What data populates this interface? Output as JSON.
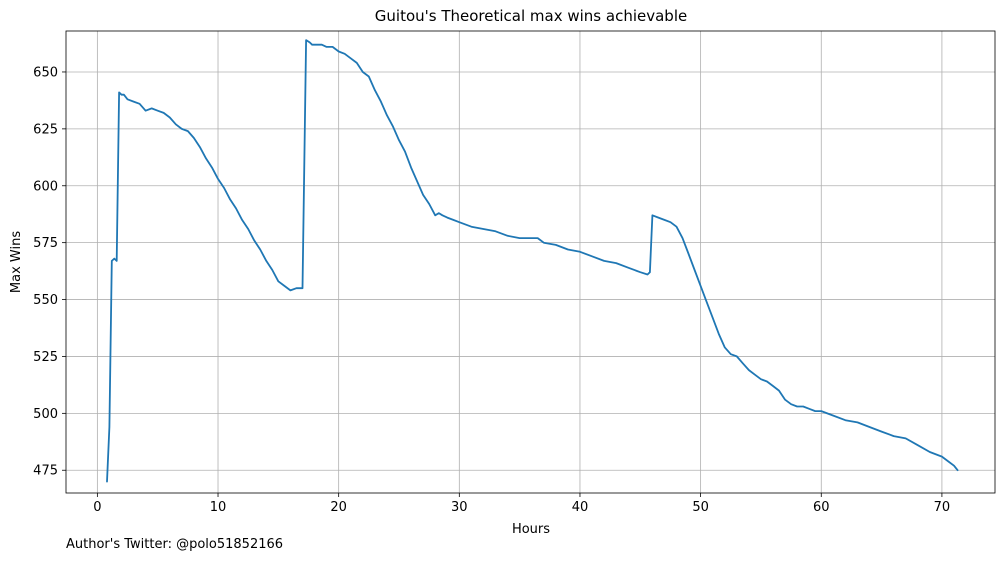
{
  "chart_data": {
    "type": "line",
    "title": "Guitou's Theoretical max wins achievable",
    "xlabel": "Hours",
    "ylabel": "Max Wins",
    "xlim": [
      -2.6,
      74.4
    ],
    "ylim": [
      465,
      668
    ],
    "xticks": [
      0,
      10,
      20,
      30,
      40,
      50,
      60,
      70
    ],
    "yticks": [
      475,
      500,
      525,
      550,
      575,
      600,
      625,
      650
    ],
    "grid": true,
    "series_color": "#1f77b4",
    "series": [
      {
        "x": [
          0.8,
          1.0,
          1.2,
          1.4,
          1.6,
          1.8,
          2.0,
          2.2,
          2.5,
          3.0,
          3.5,
          4.0,
          4.5,
          5.0,
          5.5,
          6.0,
          6.5,
          7.0,
          7.5,
          8.0,
          8.5,
          9.0,
          9.5,
          10.0,
          10.5,
          11.0,
          11.5,
          12.0,
          12.5,
          13.0,
          13.5,
          14.0,
          14.5,
          15.0,
          15.5,
          16.0,
          16.5,
          17.0,
          17.3,
          17.6,
          17.8,
          18.2,
          18.6,
          19.0,
          19.5,
          20.0,
          20.5,
          21.0,
          21.5,
          22.0,
          22.5,
          23.0,
          23.5,
          24.0,
          24.5,
          25.0,
          25.5,
          26.0,
          26.5,
          27.0,
          27.5,
          28.0,
          28.3,
          28.6,
          29.0,
          29.5,
          30.0,
          31.0,
          32.0,
          33.0,
          34.0,
          35.0,
          36.0,
          36.5,
          37.0,
          38.0,
          39.0,
          40.0,
          41.0,
          42.0,
          43.0,
          44.0,
          45.0,
          45.6,
          45.8,
          46.0,
          46.5,
          47.0,
          47.5,
          48.0,
          48.5,
          49.0,
          49.5,
          50.0,
          50.5,
          51.0,
          51.5,
          52.0,
          52.5,
          53.0,
          53.5,
          54.0,
          54.5,
          55.0,
          55.5,
          56.0,
          56.5,
          57.0,
          57.5,
          58.0,
          58.5,
          59.0,
          59.5,
          60.0,
          61.0,
          62.0,
          63.0,
          64.0,
          65.0,
          66.0,
          67.0,
          68.0,
          69.0,
          70.0,
          70.5,
          71.0,
          71.3
        ],
        "y": [
          470,
          494,
          567,
          568,
          567,
          641,
          640,
          640,
          638,
          637,
          636,
          633,
          634,
          633,
          632,
          630,
          627,
          625,
          624,
          621,
          617,
          612,
          608,
          603,
          599,
          594,
          590,
          585,
          581,
          576,
          572,
          567,
          563,
          558,
          556,
          554,
          555,
          555,
          664,
          663,
          662,
          662,
          662,
          661,
          661,
          659,
          658,
          656,
          654,
          650,
          648,
          642,
          637,
          631,
          626,
          620,
          615,
          608,
          602,
          596,
          592,
          587,
          588,
          587,
          586,
          585,
          584,
          582,
          581,
          580,
          578,
          577,
          577,
          577,
          575,
          574,
          572,
          571,
          569,
          567,
          566,
          564,
          562,
          561,
          562,
          587,
          586,
          585,
          584,
          582,
          577,
          570,
          563,
          556,
          549,
          542,
          535,
          529,
          526,
          525,
          522,
          519,
          517,
          515,
          514,
          512,
          510,
          506,
          504,
          503,
          503,
          502,
          501,
          501,
          499,
          497,
          496,
          494,
          492,
          490,
          489,
          486,
          483,
          481,
          479,
          477,
          475
        ]
      }
    ]
  },
  "footer_text": "Author's Twitter: @polo51852166"
}
